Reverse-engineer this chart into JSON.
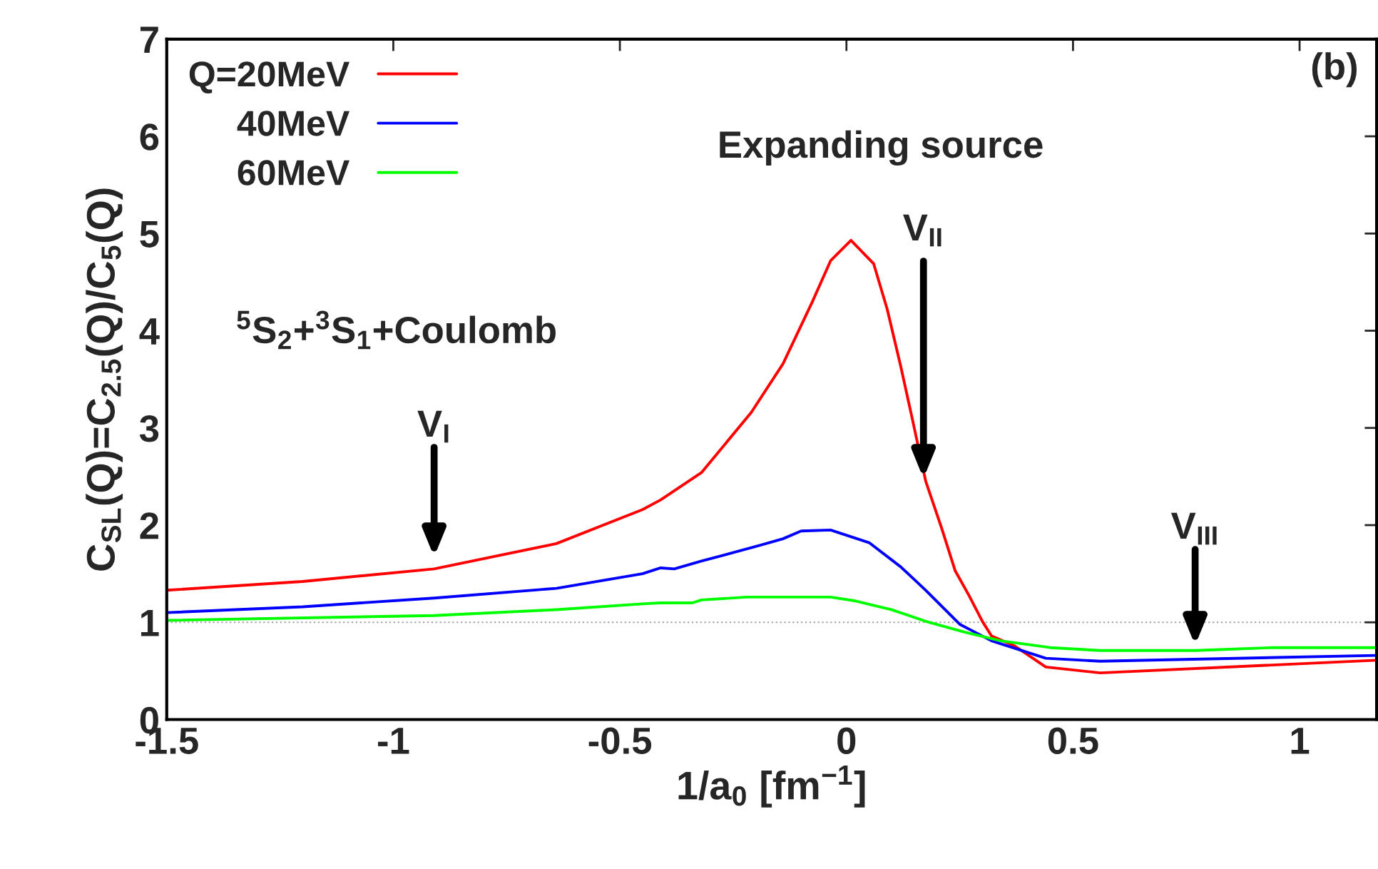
{
  "chart_data": {
    "type": "line",
    "xlabel": "1/a$_{0}$ [fm$^{−1}$]",
    "ylabel": "C$_{SL}$(Q)=C$_{2.5}$(Q)/C$_{5}$(Q)",
    "xlim": [
      -1.5,
      1.17
    ],
    "ylim": [
      0,
      7
    ],
    "xticks": [
      -1.5,
      -1,
      -0.5,
      0,
      0.5,
      1
    ],
    "yticks": [
      0,
      1,
      2,
      3,
      4,
      5,
      6,
      7
    ],
    "grid": false,
    "legend": "top left",
    "line_style": "solid",
    "marker": "none",
    "series": [
      {
        "name": "Q=20MeV",
        "color": "#ff0000",
        "x": [
          -1.5,
          -1.2,
          -0.91,
          -0.64,
          -0.45,
          -0.41,
          -0.32,
          -0.21,
          -0.14,
          -0.075,
          -0.035,
          0.01,
          0.06,
          0.09,
          0.12,
          0.145,
          0.175,
          0.21,
          0.24,
          0.27,
          0.3,
          0.32,
          0.37,
          0.44,
          0.56,
          1.17
        ],
        "values": [
          1.33,
          1.42,
          1.55,
          1.81,
          2.16,
          2.26,
          2.54,
          3.16,
          3.66,
          4.3,
          4.72,
          4.93,
          4.69,
          4.22,
          3.63,
          3.1,
          2.45,
          1.97,
          1.53,
          1.28,
          1.01,
          0.86,
          0.76,
          0.54,
          0.48,
          0.61
        ]
      },
      {
        "name": "40MeV",
        "color": "#0000ff",
        "x": [
          -1.5,
          -1.2,
          -0.91,
          -0.64,
          -0.45,
          -0.41,
          -0.38,
          -0.32,
          -0.2,
          -0.14,
          -0.1,
          -0.035,
          0.05,
          0.12,
          0.175,
          0.25,
          0.32,
          0.44,
          0.56,
          1.17
        ],
        "values": [
          1.1,
          1.16,
          1.25,
          1.35,
          1.5,
          1.56,
          1.55,
          1.63,
          1.78,
          1.86,
          1.94,
          1.95,
          1.82,
          1.57,
          1.33,
          0.98,
          0.81,
          0.63,
          0.6,
          0.66
        ]
      },
      {
        "name": "60MeV",
        "color": "#00ff00",
        "x": [
          -1.5,
          -0.91,
          -0.64,
          -0.45,
          -0.41,
          -0.34,
          -0.32,
          -0.22,
          -0.035,
          0.02,
          0.1,
          0.175,
          0.26,
          0.34,
          0.45,
          0.56,
          0.77,
          0.94,
          1.17
        ],
        "values": [
          1.02,
          1.07,
          1.13,
          1.19,
          1.2,
          1.2,
          1.23,
          1.26,
          1.26,
          1.22,
          1.13,
          1.01,
          0.9,
          0.81,
          0.74,
          0.71,
          0.71,
          0.74,
          0.74
        ]
      }
    ],
    "ref_lines": [
      {
        "axis": "y",
        "value": 1,
        "color": "#a0a0a0",
        "line_style": "dotted"
      }
    ],
    "annotations": [
      "(b)",
      "Expanding source",
      "$^{5}$S$_{2}$+$^{3}$S$_{1}$+Coulomb",
      "V$_{I}$",
      {
        "text": "V$_{II}$",
        "x": 0.17,
        "y": 2.48
      },
      "V$_{III}$"
    ]
  }
}
